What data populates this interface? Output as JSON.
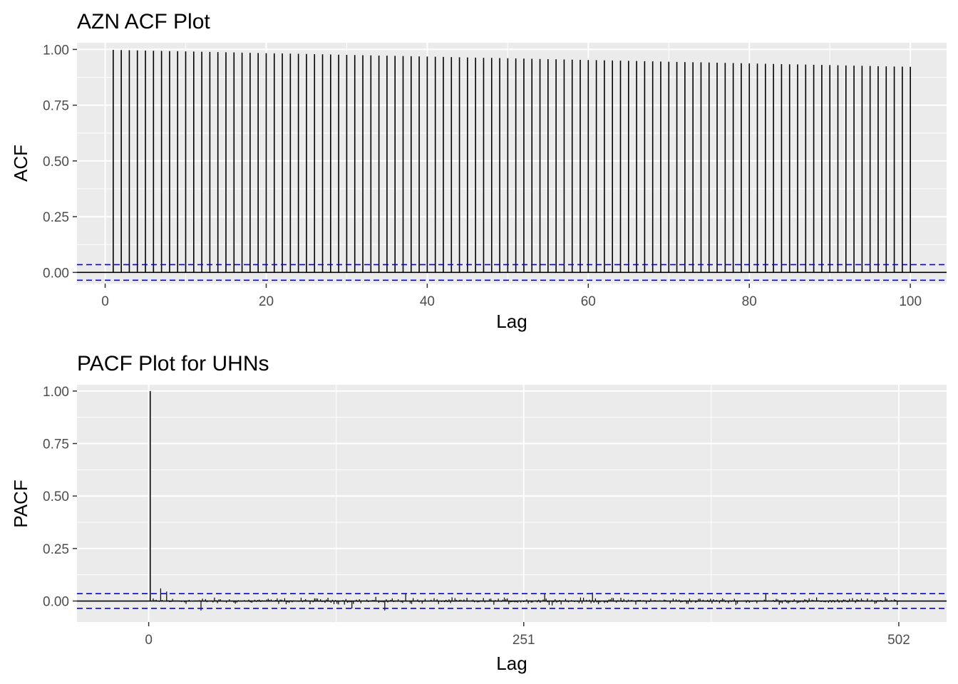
{
  "colors": {
    "panel_background": "#ebebeb",
    "grid": "#ffffff",
    "stem": "#000000",
    "confidence_band": "#0000ff",
    "zero_line": "#000000"
  },
  "chart_data": [
    {
      "type": "bar",
      "subtype": "acf-stem",
      "title": "AZN ACF Plot",
      "xlabel": "Lag",
      "ylabel": "ACF",
      "xlim": [
        -3.5,
        104.5
      ],
      "ylim": [
        -0.05,
        1.03
      ],
      "x_ticks": [
        0,
        20,
        40,
        60,
        80,
        100
      ],
      "x_tick_labels": [
        "0",
        "20",
        "40",
        "60",
        "80",
        "100"
      ],
      "y_ticks": [
        0,
        0.25,
        0.5,
        0.75,
        1.0
      ],
      "y_tick_labels": [
        "0.00",
        "0.25",
        "0.50",
        "0.75",
        "1.00"
      ],
      "confidence_bound": 0.035,
      "lags": {
        "from": 1,
        "to": 100
      },
      "acf_start": 0.998,
      "acf_end": 0.922,
      "grid": true,
      "legend": "none"
    },
    {
      "type": "bar",
      "subtype": "pacf-stem",
      "title": "PACF Plot for UHNs",
      "xlabel": "Lag",
      "ylabel": "PACF",
      "xlim": [
        -48,
        534
      ],
      "ylim": [
        -0.1,
        1.03
      ],
      "x_ticks": [
        0,
        251,
        502
      ],
      "x_tick_labels": [
        "0",
        "251",
        "502"
      ],
      "y_ticks": [
        0,
        0.25,
        0.5,
        0.75,
        1.0
      ],
      "y_tick_labels": [
        "0.00",
        "0.25",
        "0.50",
        "0.75",
        "1.00"
      ],
      "confidence_bound": 0.035,
      "lags": {
        "from": 1,
        "to": 502
      },
      "pacf_lag1": 1.0,
      "noise_amplitude": 0.022,
      "notable_spikes": [
        {
          "lag": 8,
          "value": 0.06
        },
        {
          "lag": 12,
          "value": 0.045
        },
        {
          "lag": 35,
          "value": -0.045
        },
        {
          "lag": 136,
          "value": -0.035
        },
        {
          "lag": 158,
          "value": -0.045
        },
        {
          "lag": 172,
          "value": 0.038
        },
        {
          "lag": 265,
          "value": 0.037
        },
        {
          "lag": 297,
          "value": 0.04
        },
        {
          "lag": 413,
          "value": 0.038
        }
      ],
      "grid": true,
      "legend": "none"
    }
  ]
}
